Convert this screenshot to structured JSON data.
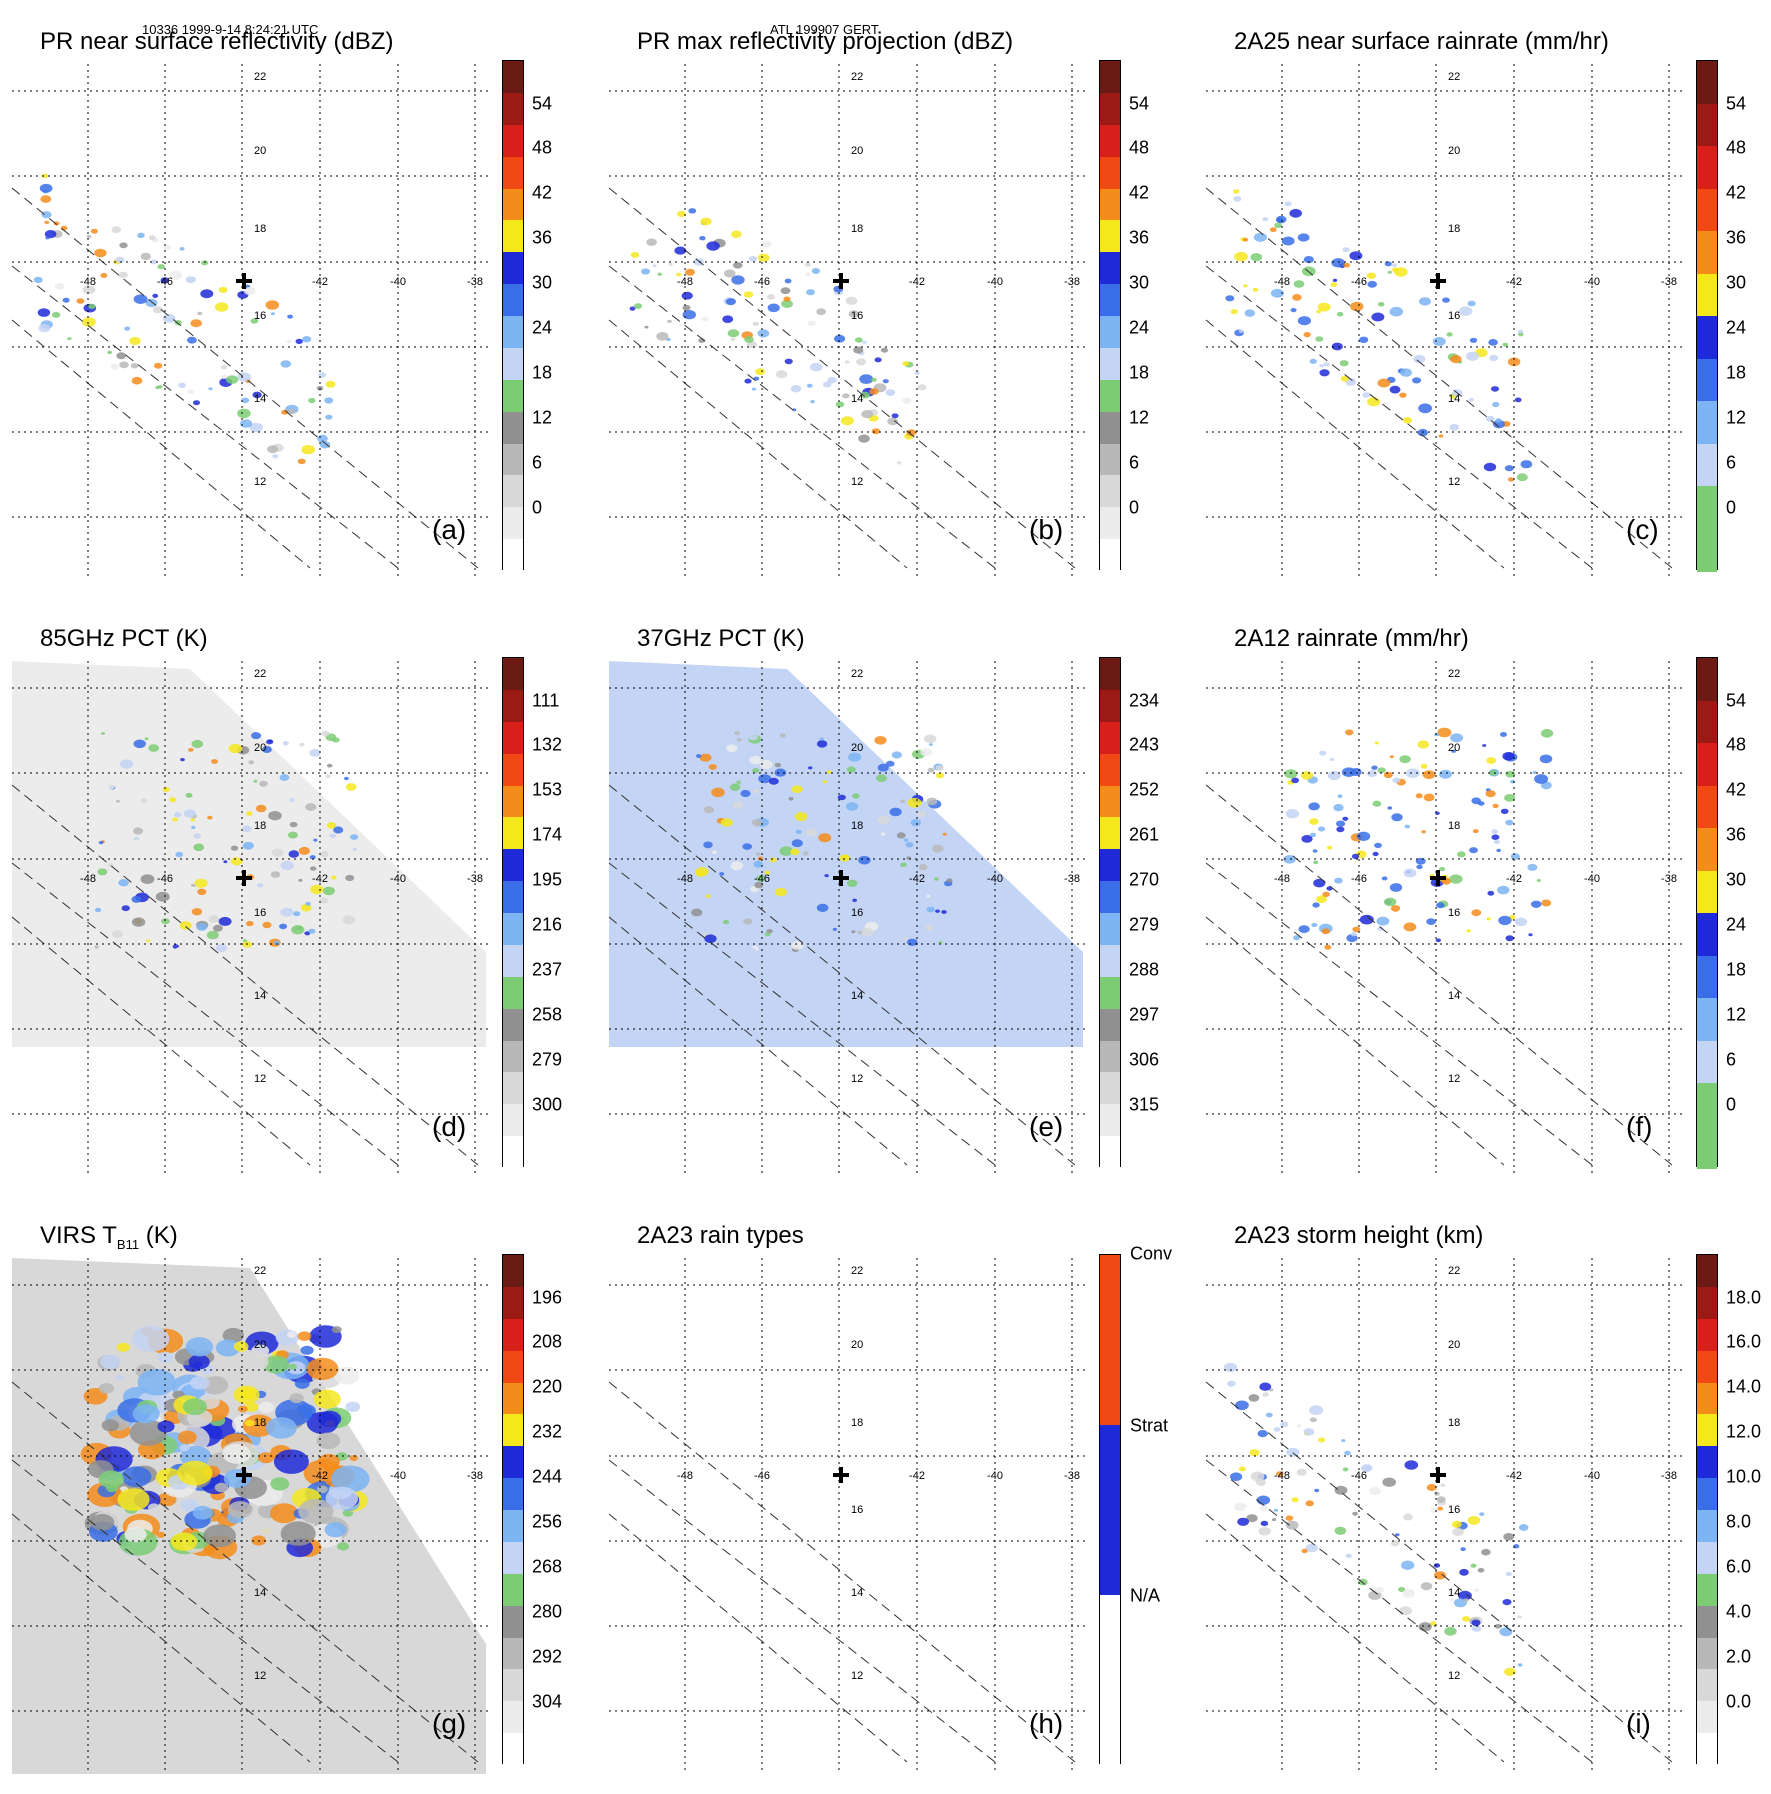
{
  "header": {
    "left": "10336 1999-9-14 8:24:21 UTC",
    "center": "ATL 199907 GERT"
  },
  "chart_data": [
    {
      "type": "heatmap",
      "letter": "(a)",
      "title": "PR near surface reflectivity (dBZ)",
      "colorbar_ticks": [
        "54",
        "48",
        "42",
        "36",
        "30",
        "24",
        "18",
        "12",
        "6",
        "0"
      ],
      "colorbar_segments": [
        "#6b1a14",
        "#9c1a14",
        "#d8201a",
        "#f04a14",
        "#f48c1c",
        "#f4e81c",
        "#1e2ad8",
        "#3a6ee8",
        "#7cb4f4",
        "#c4d4f4",
        "#7ccc74",
        "#909090",
        "#b8b8b8",
        "#d8d8d8",
        "#ececec",
        "#ffffff"
      ],
      "lon_labels": [
        "-48",
        "-46",
        "-42",
        "-40",
        "-38"
      ],
      "lat_labels": [
        "22",
        "20",
        "18",
        "16",
        "14",
        "12"
      ],
      "swath": "pr"
    },
    {
      "type": "heatmap",
      "letter": "(b)",
      "title": "PR max reflectivity projection (dBZ)",
      "colorbar_ticks": [
        "54",
        "48",
        "42",
        "36",
        "30",
        "24",
        "18",
        "12",
        "6",
        "0"
      ],
      "colorbar_segments": [
        "#6b1a14",
        "#9c1a14",
        "#d8201a",
        "#f04a14",
        "#f48c1c",
        "#f4e81c",
        "#1e2ad8",
        "#3a6ee8",
        "#7cb4f4",
        "#c4d4f4",
        "#7ccc74",
        "#909090",
        "#b8b8b8",
        "#d8d8d8",
        "#ececec",
        "#ffffff"
      ],
      "lon_labels": [
        "-48",
        "-46",
        "-42",
        "-40",
        "-38"
      ],
      "lat_labels": [
        "22",
        "20",
        "18",
        "16",
        "14",
        "12"
      ],
      "swath": "pr"
    },
    {
      "type": "heatmap",
      "letter": "(c)",
      "title": "2A25 near surface rainrate (mm/hr)",
      "colorbar_ticks": [
        "54",
        "48",
        "42",
        "36",
        "30",
        "24",
        "18",
        "12",
        "6",
        "0"
      ],
      "colorbar_segments": [
        "#6b1a14",
        "#9c1a14",
        "#d8201a",
        "#f04a14",
        "#f48c1c",
        "#f4e81c",
        "#1e2ad8",
        "#3a6ee8",
        "#7cb4f4",
        "#c4d4f4",
        "#7ccc74",
        "#7ccc74"
      ],
      "lon_labels": [
        "-48",
        "-46",
        "-42",
        "-40",
        "-38"
      ],
      "lat_labels": [
        "22",
        "20",
        "18",
        "16",
        "14",
        "12"
      ],
      "swath": "pr"
    },
    {
      "type": "heatmap",
      "letter": "(d)",
      "title": "85GHz PCT (K)",
      "colorbar_ticks": [
        "111",
        "132",
        "153",
        "174",
        "195",
        "216",
        "237",
        "258",
        "279",
        "300"
      ],
      "colorbar_segments": [
        "#6b1a14",
        "#9c1a14",
        "#d8201a",
        "#f04a14",
        "#f48c1c",
        "#f4e81c",
        "#1e2ad8",
        "#3a6ee8",
        "#7cb4f4",
        "#c4d4f4",
        "#7ccc74",
        "#909090",
        "#b8b8b8",
        "#d8d8d8",
        "#ececec",
        "#ffffff"
      ],
      "lon_labels": [
        "-48",
        "-46",
        "-42",
        "-40",
        "-38"
      ],
      "lat_labels": [
        "22",
        "20",
        "18",
        "16",
        "14",
        "12"
      ],
      "swath": "tmi"
    },
    {
      "type": "heatmap",
      "letter": "(e)",
      "title": "37GHz PCT (K)",
      "colorbar_ticks": [
        "234",
        "243",
        "252",
        "261",
        "270",
        "279",
        "288",
        "297",
        "306",
        "315"
      ],
      "colorbar_segments": [
        "#6b1a14",
        "#9c1a14",
        "#d8201a",
        "#f04a14",
        "#f48c1c",
        "#f4e81c",
        "#1e2ad8",
        "#3a6ee8",
        "#7cb4f4",
        "#c4d4f4",
        "#7ccc74",
        "#909090",
        "#b8b8b8",
        "#d8d8d8",
        "#ececec",
        "#ffffff"
      ],
      "lon_labels": [
        "-48",
        "-46",
        "-42",
        "-40",
        "-38"
      ],
      "lat_labels": [
        "22",
        "20",
        "18",
        "16",
        "14",
        "12"
      ],
      "swath": "tmi"
    },
    {
      "type": "heatmap",
      "letter": "(f)",
      "title": "2A12 rainrate (mm/hr)",
      "colorbar_ticks": [
        "54",
        "48",
        "42",
        "36",
        "30",
        "24",
        "18",
        "12",
        "6",
        "0"
      ],
      "colorbar_segments": [
        "#6b1a14",
        "#9c1a14",
        "#d8201a",
        "#f04a14",
        "#f48c1c",
        "#f4e81c",
        "#1e2ad8",
        "#3a6ee8",
        "#7cb4f4",
        "#c4d4f4",
        "#7ccc74",
        "#7ccc74"
      ],
      "lon_labels": [
        "-48",
        "-46",
        "-42",
        "-40",
        "-38"
      ],
      "lat_labels": [
        "22",
        "20",
        "18",
        "16",
        "14",
        "12"
      ],
      "swath": "tmi"
    },
    {
      "type": "heatmap",
      "letter": "(g)",
      "title": "VIRS T",
      "title_sub": "B11",
      "title_suffix": " (K)",
      "colorbar_ticks": [
        "196",
        "208",
        "220",
        "232",
        "244",
        "256",
        "268",
        "280",
        "292",
        "304"
      ],
      "colorbar_segments": [
        "#6b1a14",
        "#9c1a14",
        "#d8201a",
        "#f04a14",
        "#f48c1c",
        "#f4e81c",
        "#1e2ad8",
        "#3a6ee8",
        "#7cb4f4",
        "#c4d4f4",
        "#7ccc74",
        "#909090",
        "#b8b8b8",
        "#d8d8d8",
        "#ececec",
        "#ffffff"
      ],
      "lon_labels": [
        "-42",
        "-40",
        "-38"
      ],
      "lat_labels": [
        "22",
        "20",
        "18",
        "14",
        "12"
      ],
      "swath": "virs"
    },
    {
      "type": "heatmap",
      "letter": "(h)",
      "title": "2A23 rain types",
      "colorbar_ticks": [
        "Conv",
        "Strat",
        "N/A"
      ],
      "colorbar_segments": [
        "#f04a14",
        "#1e2ad8",
        "#ffffff"
      ],
      "lon_labels": [
        "-48",
        "-46",
        "-42",
        "-40",
        "-38"
      ],
      "lat_labels": [
        "22",
        "20",
        "18",
        "16",
        "14",
        "12"
      ],
      "swath": "pr"
    },
    {
      "type": "heatmap",
      "letter": "(i)",
      "title": "2A23 storm height (km)",
      "colorbar_ticks": [
        "18.0",
        "16.0",
        "14.0",
        "12.0",
        "10.0",
        "8.0",
        "6.0",
        "4.0",
        "2.0",
        "0.0"
      ],
      "colorbar_segments": [
        "#6b1a14",
        "#9c1a14",
        "#d8201a",
        "#f04a14",
        "#f48c1c",
        "#f4e81c",
        "#1e2ad8",
        "#3a6ee8",
        "#7cb4f4",
        "#c4d4f4",
        "#7ccc74",
        "#909090",
        "#b8b8b8",
        "#d8d8d8",
        "#ececec",
        "#ffffff"
      ],
      "lon_labels": [
        "-48",
        "-46",
        "-42",
        "-40",
        "-38"
      ],
      "lat_labels": [
        "22",
        "20",
        "18",
        "16",
        "14",
        "12"
      ],
      "swath": "pr"
    }
  ]
}
